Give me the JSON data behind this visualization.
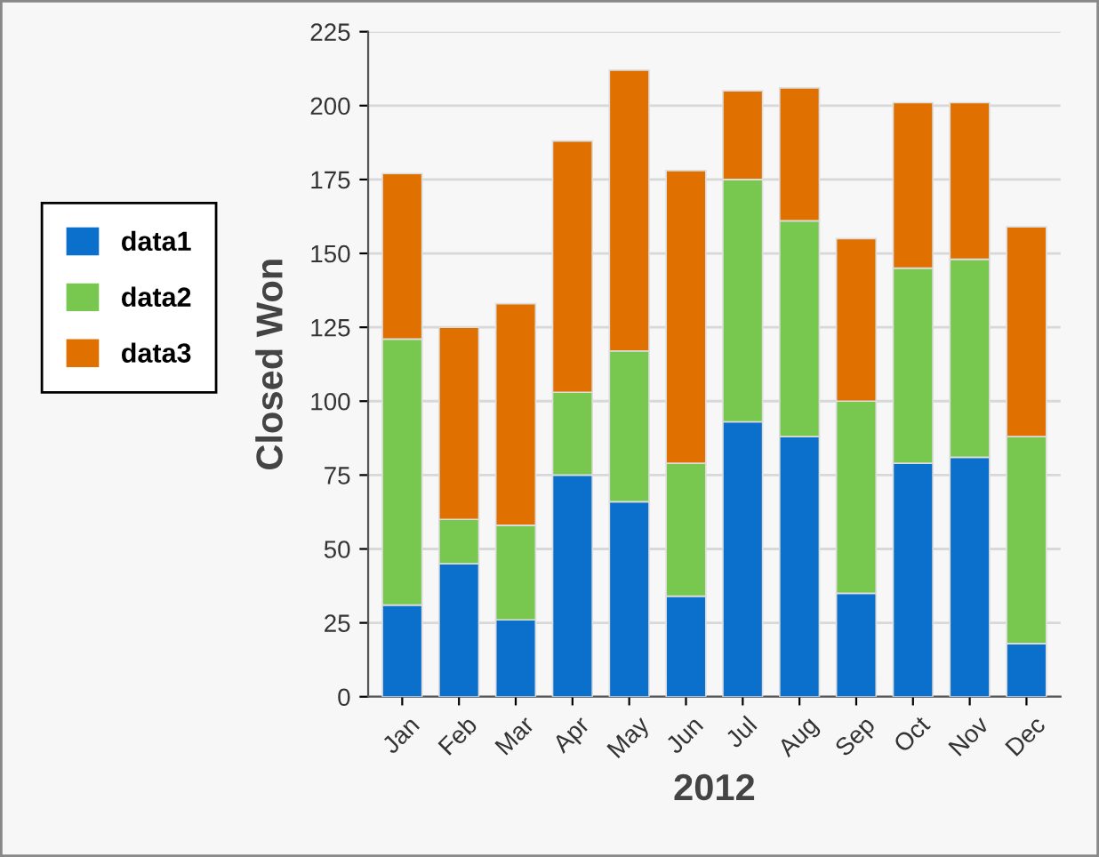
{
  "chart_data": {
    "type": "bar",
    "stacked": true,
    "xlabel": "2012",
    "ylabel": "Closed Won",
    "categories": [
      "Jan",
      "Feb",
      "Mar",
      "Apr",
      "May",
      "Jun",
      "Jul",
      "Aug",
      "Sep",
      "Oct",
      "Nov",
      "Dec"
    ],
    "series": [
      {
        "name": "data1",
        "color": "#0b6fcc",
        "values": [
          31,
          45,
          26,
          75,
          66,
          34,
          93,
          88,
          35,
          79,
          81,
          18
        ]
      },
      {
        "name": "data2",
        "color": "#78c850",
        "values": [
          90,
          15,
          32,
          28,
          51,
          45,
          82,
          73,
          65,
          66,
          67,
          70
        ]
      },
      {
        "name": "data3",
        "color": "#e07000",
        "values": [
          56,
          65,
          75,
          85,
          95,
          99,
          30,
          45,
          55,
          56,
          53,
          71
        ]
      }
    ],
    "ylim": [
      0,
      225
    ],
    "yticks": [
      0,
      25,
      50,
      75,
      100,
      125,
      150,
      175,
      200,
      225
    ],
    "grid": "y",
    "legend": "left"
  }
}
